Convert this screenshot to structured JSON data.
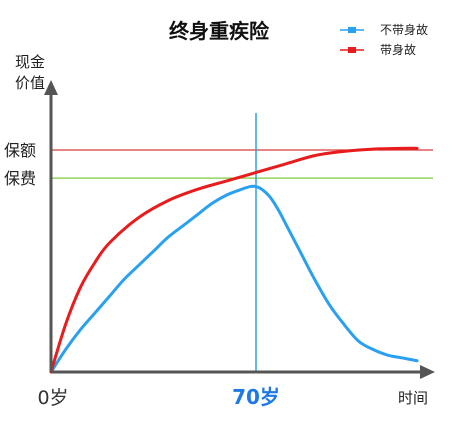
{
  "chart_data": {
    "type": "line",
    "title": "终身重疾险",
    "xlabel": "时间",
    "ylabel": [
      "现金",
      "价值"
    ],
    "x_ticks": [
      {
        "x": 0,
        "label": "0岁",
        "color": "#333333",
        "bold": false
      },
      {
        "x": 70,
        "label": "70岁",
        "color": "#1e78e6",
        "bold": true
      }
    ],
    "xlim": [
      0,
      126
    ],
    "ylim": [
      0,
      100
    ],
    "reference_lines": [
      {
        "label": "保额",
        "y": 79,
        "color": "#d93a3a"
      },
      {
        "label": "保费",
        "y": 69,
        "color": "#7dcc3a"
      }
    ],
    "vertical_marker": {
      "x": 70,
      "color": "#2ea0ea"
    },
    "series": [
      {
        "name": "不带身故",
        "color": "#2aa0f0",
        "x": [
          0,
          5,
          10,
          15,
          20,
          25,
          30,
          35,
          40,
          45,
          50,
          55,
          60,
          65,
          68,
          70,
          72,
          75,
          78,
          80,
          85,
          90,
          95,
          100,
          105,
          110,
          115,
          120,
          125
        ],
        "y": [
          0,
          8,
          15,
          21,
          27,
          33,
          38,
          43,
          48,
          52,
          56,
          60,
          63,
          65,
          66,
          66,
          65,
          62,
          57,
          53,
          43,
          33,
          24,
          17,
          11,
          8,
          6,
          5,
          4
        ]
      },
      {
        "name": "带身故",
        "color": "#e81c1c",
        "x": [
          0,
          5,
          10,
          15,
          20,
          30,
          40,
          50,
          60,
          70,
          80,
          90,
          100,
          110,
          120,
          125
        ],
        "y": [
          0,
          17,
          30,
          39,
          46,
          55,
          61,
          65,
          68,
          71,
          74,
          77,
          78.5,
          79.3,
          79.6,
          79.6
        ]
      }
    ],
    "legend": {
      "position": "top-right"
    },
    "grid": false
  }
}
